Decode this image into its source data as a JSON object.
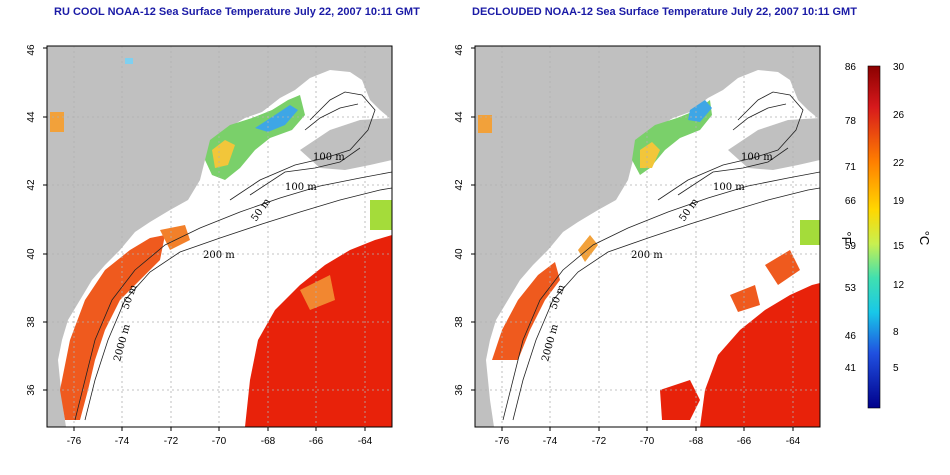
{
  "titles": {
    "left": "RU COOL NOAA-12 Sea Surface Temperature July 22, 2007 10:11 GMT",
    "right": "DECLOUDED NOAA-12 Sea Surface Temperature July 22, 2007 10:11 GMT"
  },
  "axes": {
    "lon_ticks": [
      "-76",
      "-74",
      "-72",
      "-70",
      "-68",
      "-66",
      "-64"
    ],
    "lat_ticks": [
      "36",
      "38",
      "40",
      "42",
      "44",
      "46"
    ]
  },
  "contour_labels": {
    "left": [
      "100 m",
      "100 m",
      "50 m",
      "200 m",
      "50 m",
      "2000 m"
    ],
    "right": [
      "100 m",
      "100 m",
      "50 m",
      "200 m",
      "50 m",
      "2000 m"
    ]
  },
  "colorbar": {
    "fahrenheit_ticks": [
      "86",
      "78",
      "71",
      "66",
      "59",
      "53",
      "46",
      "41"
    ],
    "celsius_ticks": [
      "30",
      "26",
      "22",
      "19",
      "15",
      "12",
      "8",
      "5"
    ],
    "fahrenheit_unit": "°F",
    "celsius_unit": "°C",
    "colors": [
      "#a50000",
      "#e41a1c",
      "#ff7f00",
      "#ffd700",
      "#c8f050",
      "#40e0b0",
      "#18c8e8",
      "#2050e0",
      "#0000a0"
    ]
  },
  "colors": {
    "land": "#c0c0c0",
    "cloud": "#ffffff",
    "title": "#1a1aa6",
    "warm_sst": "#e8220a"
  }
}
